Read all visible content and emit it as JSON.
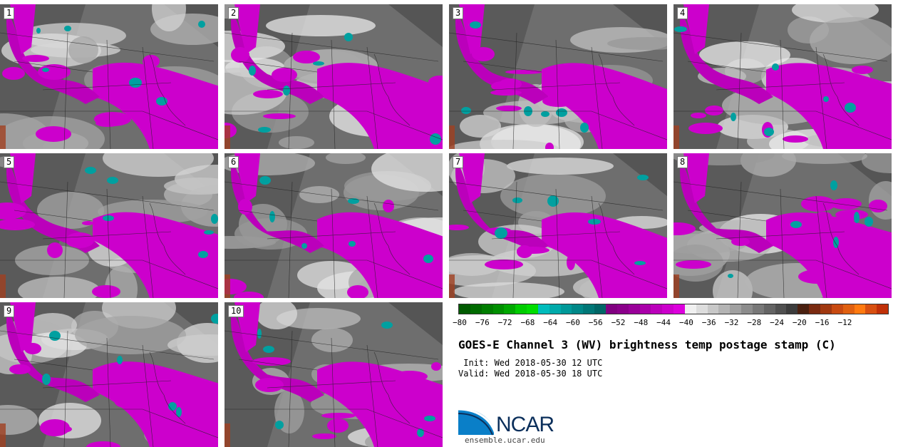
{
  "stamps": [
    {
      "label": "1"
    },
    {
      "label": "2"
    },
    {
      "label": "3"
    },
    {
      "label": "4"
    },
    {
      "label": "5"
    },
    {
      "label": "6"
    },
    {
      "label": "7"
    },
    {
      "label": "8"
    },
    {
      "label": "9"
    },
    {
      "label": "10"
    }
  ],
  "colorbar": {
    "colors": [
      "#005a00",
      "#006b00",
      "#007d00",
      "#008f00",
      "#00a800",
      "#00cc00",
      "#00dd00",
      "#00bcbc",
      "#00aaaa",
      "#009999",
      "#008888",
      "#007777",
      "#006666",
      "#800080",
      "#8a008a",
      "#990099",
      "#aa00aa",
      "#bb00bb",
      "#cc00cc",
      "#dd00dd",
      "#f0f0f0",
      "#dddddd",
      "#c8c8c8",
      "#b4b4b4",
      "#a0a0a0",
      "#8c8c8c",
      "#787878",
      "#646464",
      "#505050",
      "#3c3c3c",
      "#4a2010",
      "#7a2a10",
      "#a03810",
      "#c84a10",
      "#e06010",
      "#ff7a10",
      "#d85010",
      "#c03008"
    ],
    "ticks": [
      "−80",
      "−76",
      "−72",
      "−68",
      "−64",
      "−60",
      "−56",
      "−52",
      "−48",
      "−44",
      "−40",
      "−36",
      "−32",
      "−28",
      "−24",
      "−20",
      "−16",
      "−12"
    ]
  },
  "title": "GOES-E Channel 3 (WV) brightness temp postage stamp (C)",
  "init_line": " Init: Wed 2018-05-30 12 UTC",
  "valid_line": "Valid: Wed 2018-05-30 18 UTC",
  "logo": {
    "text": "NCAR",
    "icon": "ncar-logo-icon"
  },
  "site": "ensemble.ucar.edu"
}
